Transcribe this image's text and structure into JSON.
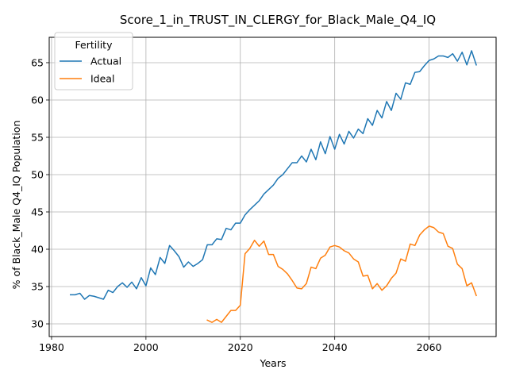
{
  "chart_data": {
    "type": "line",
    "title": "Score_1_in_TRUST_IN_CLERGY_for_Black_Male_Q4_IQ",
    "xlabel": "Years",
    "ylabel": "% of Black_Male Q4_IQ Population",
    "xlim": [
      1979.5,
      2074.2
    ],
    "ylim": [
      28.3,
      68.4
    ],
    "x_ticks": [
      1980,
      2000,
      2020,
      2040,
      2060
    ],
    "y_ticks": [
      30,
      35,
      40,
      45,
      50,
      55,
      60,
      65
    ],
    "grid": true,
    "legend": {
      "title": "Fertility",
      "placement": "top-left"
    },
    "series": [
      {
        "name": "Actual",
        "color": "#1f77b4",
        "x": [
          1984,
          1985,
          1986,
          1987,
          1988,
          1989,
          1990,
          1991,
          1992,
          1993,
          1994,
          1995,
          1996,
          1997,
          1998,
          1999,
          2000,
          2001,
          2002,
          2003,
          2004,
          2005,
          2006,
          2007,
          2008,
          2009,
          2010,
          2011,
          2012,
          2013,
          2014,
          2015,
          2016,
          2017,
          2018,
          2019,
          2020,
          2021,
          2022,
          2023,
          2024,
          2025,
          2026,
          2027,
          2028,
          2029,
          2030,
          2031,
          2032,
          2033,
          2034,
          2035,
          2036,
          2037,
          2038,
          2039,
          2040,
          2041,
          2042,
          2043,
          2044,
          2045,
          2046,
          2047,
          2048,
          2049,
          2050,
          2051,
          2052,
          2053,
          2054,
          2055,
          2056,
          2057,
          2058,
          2059,
          2060,
          2061,
          2062,
          2063,
          2064,
          2065,
          2066,
          2067,
          2068,
          2069,
          2070
        ],
        "values": [
          33.9,
          33.9,
          34.1,
          33.3,
          33.8,
          33.7,
          33.5,
          33.3,
          34.5,
          34.2,
          35.0,
          35.5,
          34.9,
          35.6,
          34.7,
          36.2,
          35.1,
          37.5,
          36.6,
          38.9,
          38.1,
          40.5,
          39.8,
          39.0,
          37.6,
          38.3,
          37.7,
          38.1,
          38.6,
          40.6,
          40.6,
          41.4,
          41.3,
          42.8,
          42.6,
          43.5,
          43.5,
          44.6,
          45.3,
          45.9,
          46.5,
          47.4,
          48.0,
          48.6,
          49.5,
          50.0,
          50.8,
          51.6,
          51.6,
          52.5,
          51.7,
          53.4,
          52.0,
          54.4,
          52.8,
          55.1,
          53.4,
          55.4,
          54.1,
          55.8,
          54.9,
          56.1,
          55.5,
          57.5,
          56.6,
          58.6,
          57.6,
          59.8,
          58.6,
          60.9,
          60.1,
          62.3,
          62.1,
          63.7,
          63.8,
          64.6,
          65.3,
          65.5,
          65.9,
          65.9,
          65.7,
          66.2,
          65.2,
          66.4,
          64.7,
          66.6,
          64.7
        ]
      },
      {
        "name": "Ideal",
        "color": "#ff7f0e",
        "x": [
          2013,
          2014,
          2015,
          2016,
          2017,
          2018,
          2019,
          2020,
          2021,
          2022,
          2023,
          2024,
          2025,
          2026,
          2027,
          2028,
          2029,
          2030,
          2031,
          2032,
          2033,
          2034,
          2035,
          2036,
          2037,
          2038,
          2039,
          2040,
          2041,
          2042,
          2043,
          2044,
          2045,
          2046,
          2047,
          2048,
          2049,
          2050,
          2051,
          2052,
          2053,
          2054,
          2055,
          2056,
          2057,
          2058,
          2059,
          2060,
          2061,
          2062,
          2063,
          2064,
          2065,
          2066,
          2067,
          2068,
          2069,
          2070
        ],
        "values": [
          30.5,
          30.2,
          30.6,
          30.2,
          31.0,
          31.8,
          31.8,
          32.5,
          39.4,
          40.1,
          41.2,
          40.4,
          41.1,
          39.3,
          39.3,
          37.7,
          37.3,
          36.7,
          35.8,
          34.8,
          34.7,
          35.4,
          37.6,
          37.4,
          38.8,
          39.2,
          40.3,
          40.5,
          40.3,
          39.8,
          39.5,
          38.7,
          38.3,
          36.4,
          36.5,
          34.7,
          35.4,
          34.5,
          35.1,
          36.1,
          36.8,
          38.7,
          38.4,
          40.7,
          40.5,
          41.9,
          42.6,
          43.1,
          42.9,
          42.3,
          42.1,
          40.4,
          40.1,
          38.0,
          37.4,
          35.1,
          35.5,
          33.8
        ]
      }
    ]
  }
}
